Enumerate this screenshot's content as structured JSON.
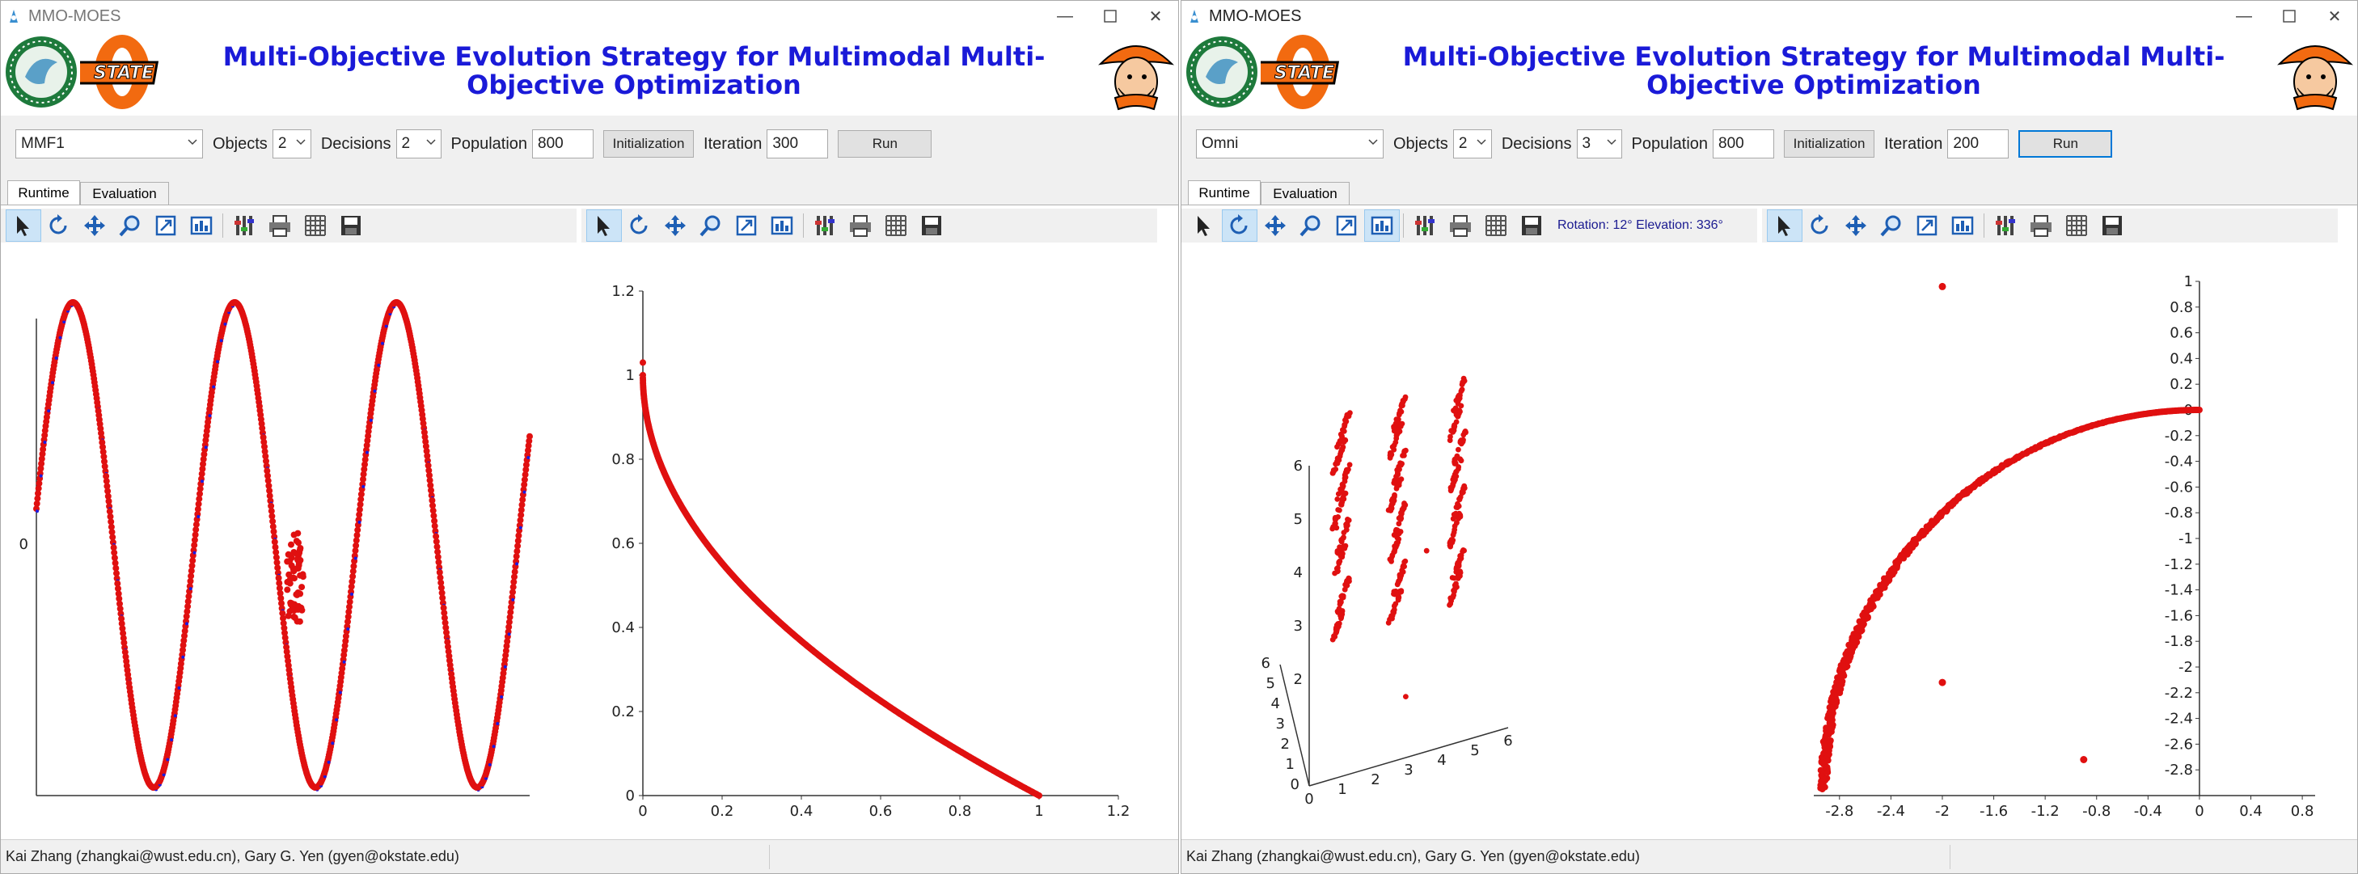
{
  "windows": [
    {
      "title": "MMO-MOES",
      "app_title": "Multi-Objective Evolution Strategy for Multimodal Multi-Objective Optimization",
      "problem": "MMF1",
      "objects_label": "Objects",
      "objects": "2",
      "decisions_label": "Decisions",
      "decisions": "2",
      "population_label": "Population",
      "population": "800",
      "init_label": "Initialization",
      "iteration_label": "Iteration",
      "iteration": "300",
      "run_label": "Run",
      "tabs": [
        "Runtime",
        "Evaluation"
      ],
      "status": "Kai Zhang (zhangkai@wust.edu.cn),  Gary G. Yen (gyen@okstate.edu)"
    },
    {
      "title": "MMO-MOES",
      "app_title": "Multi-Objective Evolution Strategy for Multimodal Multi-Objective Optimization",
      "problem": "Omni",
      "objects_label": "Objects",
      "objects": "2",
      "decisions_label": "Decisions",
      "decisions": "3",
      "population_label": "Population",
      "population": "800",
      "init_label": "Initialization",
      "iteration_label": "Iteration",
      "iteration": "200",
      "run_label": "Run",
      "tabs": [
        "Runtime",
        "Evaluation"
      ],
      "status": "Kai Zhang (zhangkai@wust.edu.cn),  Gary G. Yen (gyen@okstate.edu)",
      "rotation_readout": "Rotation: 12° Elevation: 336°"
    }
  ],
  "colors": {
    "title_blue": "#1a1ad8",
    "point_red": "#e01010",
    "point_blue": "#1a1ae0",
    "osu_orange": "#f26a10"
  },
  "icons": [
    "pointer-icon",
    "rotate-icon",
    "pan-icon",
    "zoom-icon",
    "zoom-box-icon",
    "data-cursor-icon",
    "properties-icon",
    "print-icon",
    "grid-icon",
    "save-icon"
  ],
  "chart_data": [
    {
      "type": "scatter",
      "panel": "MMF1 decision space",
      "yticks": [
        "0"
      ],
      "description_values": {
        "x_range": [
          1,
          3
        ],
        "y_range": [
          -1,
          1
        ]
      }
    },
    {
      "type": "scatter",
      "panel": "MMF1 objective space",
      "xticks": [
        "0",
        "0.2",
        "0.4",
        "0.6",
        "0.8",
        "1",
        "1.2"
      ],
      "yticks": [
        "0",
        "0.2",
        "0.4",
        "0.6",
        "0.8",
        "1",
        "1.2"
      ],
      "xlim": [
        0,
        1.2
      ],
      "ylim": [
        0,
        1.2
      ],
      "front": "f2 = 1 - sqrt(f1)",
      "outliers": [
        [
          0.0,
          1.03
        ]
      ]
    },
    {
      "type": "scatter",
      "panel": "Omni decision space (3D)",
      "xticks": [
        "0",
        "1",
        "2",
        "3",
        "4",
        "5",
        "6"
      ],
      "yticks": [
        "0",
        "1",
        "2",
        "3",
        "4",
        "5",
        "6"
      ],
      "zticks": [
        "2",
        "3",
        "4",
        "5",
        "6"
      ],
      "xlim": [
        0,
        6
      ],
      "ylim": [
        0,
        6
      ],
      "zlim": [
        0,
        6
      ]
    },
    {
      "type": "scatter",
      "panel": "Omni objective space",
      "xticks": [
        "-2.8",
        "-2.4",
        "-2",
        "-1.6",
        "-1.2",
        "-0.8",
        "-0.4",
        "0",
        "0.4",
        "0.8"
      ],
      "yticks": [
        "1",
        "0.8",
        "0.6",
        "0.4",
        "0.2",
        "0",
        "-0.2",
        "-0.4",
        "-0.6",
        "-0.8",
        "-1",
        "-1.2",
        "-1.4",
        "-1.6",
        "-1.8",
        "-2",
        "-2.2",
        "-2.4",
        "-2.6",
        "-2.8"
      ],
      "xlim": [
        -3.0,
        0.9
      ],
      "ylim": [
        -3.0,
        1.0
      ],
      "outliers": [
        [
          -2.0,
          0.96
        ],
        [
          -2.0,
          -2.12
        ],
        [
          -0.9,
          -2.72
        ]
      ]
    }
  ]
}
